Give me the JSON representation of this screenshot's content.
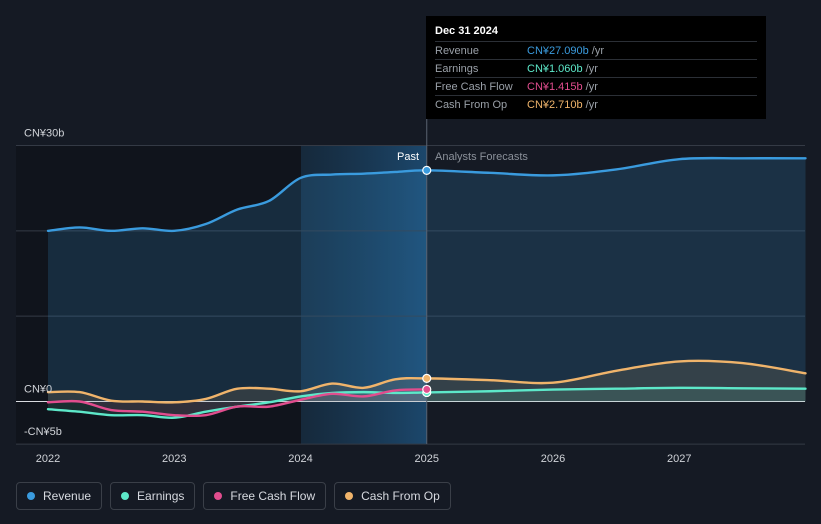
{
  "tooltip": {
    "date": "Dec 31 2024",
    "rows": [
      {
        "label": "Revenue",
        "value": "CN¥27.090b",
        "unit": "/yr",
        "color": "#3a9bde"
      },
      {
        "label": "Earnings",
        "value": "CN¥1.060b",
        "unit": "/yr",
        "color": "#5de8c9"
      },
      {
        "label": "Free Cash Flow",
        "value": "CN¥1.415b",
        "unit": "/yr",
        "color": "#e14d8e"
      },
      {
        "label": "Cash From Op",
        "value": "CN¥2.710b",
        "unit": "/yr",
        "color": "#f0b46b"
      }
    ]
  },
  "sections": {
    "past": "Past",
    "forecast": "Analysts Forecasts"
  },
  "legend": [
    {
      "label": "Revenue",
      "color": "#3a9bde"
    },
    {
      "label": "Earnings",
      "color": "#5de8c9"
    },
    {
      "label": "Free Cash Flow",
      "color": "#e14d8e"
    },
    {
      "label": "Cash From Op",
      "color": "#f0b46b"
    }
  ],
  "chart_data": {
    "type": "line",
    "unit": "CN¥b",
    "ylim": [
      -5,
      30
    ],
    "ytick_labels": [
      {
        "value": 30,
        "label": "CN¥30b"
      },
      {
        "value": 0,
        "label": "CN¥0"
      },
      {
        "value": -5,
        "label": "-CN¥5b"
      }
    ],
    "xlim": [
      2022,
      2028
    ],
    "xtick_labels": [
      "2022",
      "2023",
      "2024",
      "2025",
      "2026",
      "2027"
    ],
    "past_end": 2025,
    "highlight_start": 2024,
    "series": [
      {
        "name": "Revenue",
        "color": "#3a9bde",
        "points": [
          [
            2022,
            20.0
          ],
          [
            2022.25,
            20.4
          ],
          [
            2022.5,
            20.0
          ],
          [
            2022.75,
            20.3
          ],
          [
            2023,
            20.0
          ],
          [
            2023.25,
            20.8
          ],
          [
            2023.5,
            22.5
          ],
          [
            2023.75,
            23.5
          ],
          [
            2024,
            26.2
          ],
          [
            2024.25,
            26.6
          ],
          [
            2024.5,
            26.7
          ],
          [
            2024.75,
            26.9
          ],
          [
            2025,
            27.09
          ],
          [
            2025.5,
            26.8
          ],
          [
            2026,
            26.5
          ],
          [
            2026.5,
            27.2
          ],
          [
            2027,
            28.4
          ],
          [
            2027.5,
            28.5
          ],
          [
            2028,
            28.5
          ]
        ]
      },
      {
        "name": "Earnings",
        "color": "#5de8c9",
        "points": [
          [
            2022,
            -0.9
          ],
          [
            2022.25,
            -1.2
          ],
          [
            2022.5,
            -1.6
          ],
          [
            2022.75,
            -1.6
          ],
          [
            2023,
            -1.9
          ],
          [
            2023.25,
            -1.2
          ],
          [
            2023.5,
            -0.6
          ],
          [
            2023.75,
            -0.1
          ],
          [
            2024,
            0.6
          ],
          [
            2024.25,
            1.0
          ],
          [
            2024.5,
            1.1
          ],
          [
            2024.75,
            1.0
          ],
          [
            2025,
            1.06
          ],
          [
            2025.5,
            1.2
          ],
          [
            2026,
            1.4
          ],
          [
            2026.5,
            1.5
          ],
          [
            2027,
            1.6
          ],
          [
            2027.5,
            1.55
          ],
          [
            2028,
            1.5
          ]
        ]
      },
      {
        "name": "Free Cash Flow",
        "color": "#e14d8e",
        "points": [
          [
            2022,
            -0.1
          ],
          [
            2022.25,
            0.0
          ],
          [
            2022.5,
            -1.0
          ],
          [
            2022.75,
            -1.2
          ],
          [
            2023,
            -1.6
          ],
          [
            2023.25,
            -1.6
          ],
          [
            2023.5,
            -0.6
          ],
          [
            2023.75,
            -0.6
          ],
          [
            2024,
            0.2
          ],
          [
            2024.25,
            0.9
          ],
          [
            2024.5,
            0.6
          ],
          [
            2024.75,
            1.3
          ],
          [
            2025,
            1.415
          ]
        ]
      },
      {
        "name": "Cash From Op",
        "color": "#f0b46b",
        "points": [
          [
            2022,
            1.1
          ],
          [
            2022.25,
            1.1
          ],
          [
            2022.5,
            0.1
          ],
          [
            2022.75,
            0.0
          ],
          [
            2023,
            -0.1
          ],
          [
            2023.25,
            0.3
          ],
          [
            2023.5,
            1.5
          ],
          [
            2023.75,
            1.5
          ],
          [
            2024,
            1.2
          ],
          [
            2024.25,
            2.1
          ],
          [
            2024.5,
            1.6
          ],
          [
            2024.75,
            2.6
          ],
          [
            2025,
            2.71
          ],
          [
            2025.5,
            2.5
          ],
          [
            2026,
            2.2
          ],
          [
            2026.5,
            3.6
          ],
          [
            2027,
            4.7
          ],
          [
            2027.5,
            4.5
          ],
          [
            2028,
            3.3
          ]
        ]
      }
    ]
  }
}
